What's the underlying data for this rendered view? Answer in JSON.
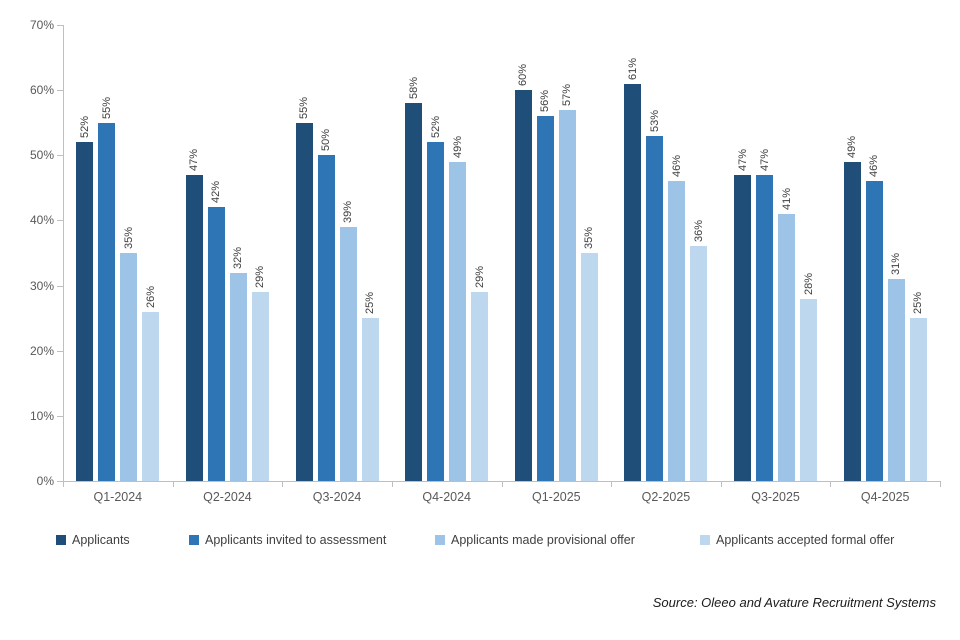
{
  "chart_data": {
    "type": "bar",
    "title": "",
    "categories": [
      "Q1-2024",
      "Q2-2024",
      "Q3-2024",
      "Q4-2024",
      "Q1-2025",
      "Q2-2025",
      "Q3-2025",
      "Q4-2025"
    ],
    "series": [
      {
        "name": "Applicants",
        "color": "#1F4E79",
        "values": [
          52,
          47,
          55,
          58,
          60,
          61,
          47,
          49
        ]
      },
      {
        "name": "Applicants invited to assessment",
        "color": "#2E75B6",
        "values": [
          55,
          42,
          50,
          52,
          56,
          53,
          47,
          46
        ]
      },
      {
        "name": "Applicants made provisional offer",
        "color": "#9DC3E6",
        "values": [
          35,
          32,
          39,
          49,
          57,
          46,
          41,
          31
        ]
      },
      {
        "name": "Applicants accepted formal offer",
        "color": "#BDD7EE",
        "values": [
          26,
          29,
          25,
          29,
          35,
          36,
          28,
          25
        ]
      }
    ],
    "data_labels": [
      [
        "52%",
        "47%",
        "55%",
        "58%",
        "60%",
        "61%",
        "47%",
        "49%"
      ],
      [
        "55%",
        "42%",
        "50%",
        "52%",
        "56%",
        "53%",
        "47%",
        "46%"
      ],
      [
        "35%",
        "32%",
        "39%",
        "49%",
        "57%",
        "46%",
        "41%",
        "31%"
      ],
      [
        "26%",
        "29%",
        "25%",
        "29%",
        "35%",
        "36%",
        "28%",
        "25%"
      ]
    ],
    "value_suffix": "%",
    "y_axis": {
      "min": 0,
      "max": 70,
      "step": 10,
      "tick_labels": [
        "0%",
        "10%",
        "20%",
        "30%",
        "40%",
        "50%",
        "60%",
        "70%"
      ]
    },
    "grid": false,
    "legend_position": "bottom",
    "legend_labels": [
      "Applicants",
      "Applicants invited to assessment",
      "Applicants made provisional offer",
      "Applicants accepted formal offer"
    ]
  },
  "source": "Source: Oleeo and Avature Recruitment Systems",
  "colors": {
    "axis": "#BFBFBF",
    "axis_label": "#595959",
    "data_label": "#404040",
    "legend_text": "#404040",
    "background": "#FFFFFF"
  }
}
